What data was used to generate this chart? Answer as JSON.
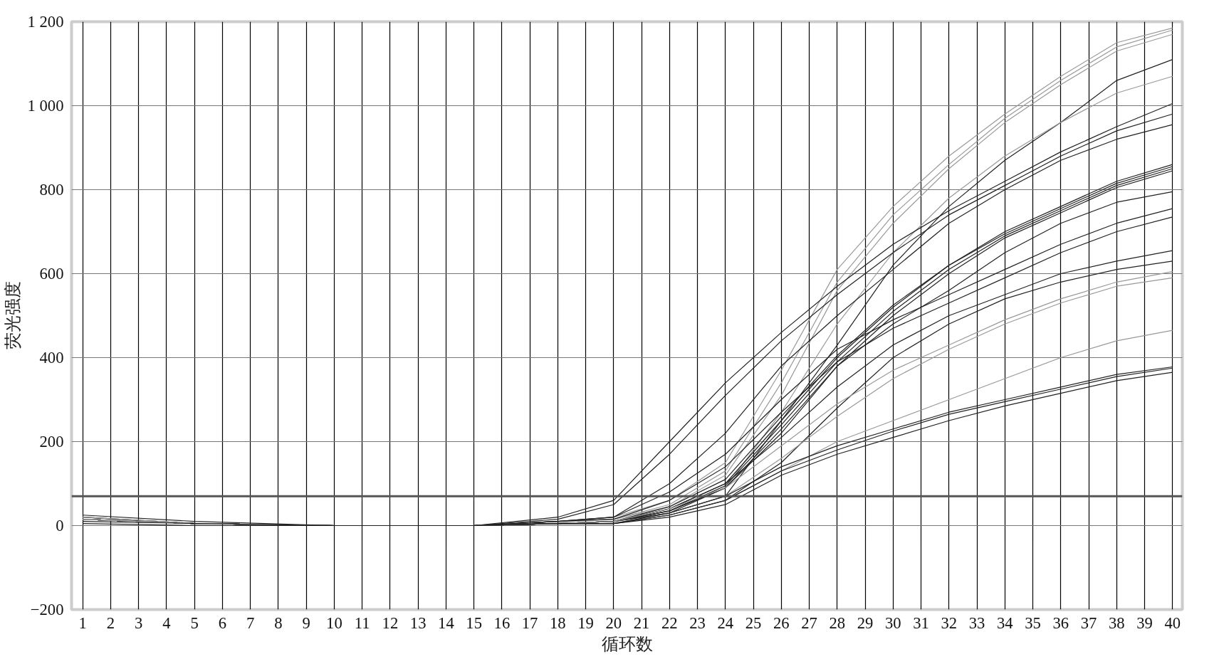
{
  "chart_data": {
    "type": "line",
    "xlabel": "循环数",
    "ylabel": "荧光强度",
    "x": [
      1,
      5,
      10,
      15,
      18,
      20,
      22,
      24,
      26,
      28,
      30,
      32,
      34,
      36,
      38,
      40
    ],
    "xlim": [
      0.6,
      40.35
    ],
    "xticks": [
      1,
      2,
      3,
      4,
      5,
      6,
      7,
      8,
      9,
      10,
      11,
      12,
      13,
      14,
      15,
      16,
      17,
      18,
      19,
      20,
      21,
      22,
      23,
      24,
      25,
      26,
      27,
      28,
      29,
      30,
      31,
      32,
      33,
      34,
      35,
      36,
      37,
      38,
      39,
      40
    ],
    "ylim": [
      -200,
      1200
    ],
    "yticks": [
      {
        "value": -200,
        "label": "−200"
      },
      0,
      200,
      400,
      600,
      800,
      {
        "value": 1000,
        "label": "1 000"
      },
      {
        "value": 1200,
        "label": "1 200"
      }
    ],
    "grid": true,
    "marker": "none",
    "line_style": "solid",
    "ref_lines": [
      {
        "axis": "y",
        "value": 70,
        "color": "#555555"
      }
    ],
    "series": [
      {
        "color": "#999999",
        "values": [
          20,
          5,
          0,
          0,
          10,
          20,
          60,
          150,
          370,
          610,
          760,
          880,
          980,
          1070,
          1150,
          1185
        ]
      },
      {
        "color": "#999999",
        "values": [
          20,
          5,
          0,
          0,
          10,
          15,
          50,
          130,
          340,
          580,
          740,
          860,
          970,
          1060,
          1140,
          1180
        ]
      },
      {
        "color": "#999999",
        "values": [
          20,
          5,
          0,
          0,
          10,
          15,
          45,
          120,
          310,
          560,
          720,
          850,
          960,
          1050,
          1130,
          1170
        ]
      },
      {
        "color": "#222222",
        "values": [
          20,
          5,
          0,
          0,
          5,
          10,
          30,
          70,
          250,
          430,
          620,
          760,
          870,
          960,
          1060,
          1110
        ]
      },
      {
        "color": "#999999",
        "values": [
          20,
          5,
          0,
          0,
          5,
          10,
          35,
          90,
          270,
          480,
          650,
          780,
          880,
          960,
          1030,
          1070
        ]
      },
      {
        "color": "#222222",
        "values": [
          15,
          5,
          0,
          0,
          20,
          60,
          200,
          340,
          460,
          570,
          670,
          750,
          820,
          890,
          950,
          1005
        ]
      },
      {
        "color": "#222222",
        "values": [
          15,
          5,
          0,
          0,
          15,
          50,
          170,
          310,
          440,
          550,
          650,
          740,
          810,
          880,
          940,
          980
        ]
      },
      {
        "color": "#222222",
        "values": [
          15,
          5,
          0,
          0,
          10,
          20,
          100,
          220,
          380,
          500,
          610,
          720,
          800,
          870,
          920,
          955
        ]
      },
      {
        "color": "#222222",
        "values": [
          15,
          5,
          0,
          0,
          5,
          10,
          40,
          100,
          250,
          400,
          520,
          620,
          700,
          760,
          820,
          860
        ]
      },
      {
        "color": "#222222",
        "values": [
          15,
          5,
          0,
          0,
          5,
          10,
          45,
          110,
          260,
          405,
          525,
          620,
          695,
          755,
          815,
          855
        ]
      },
      {
        "color": "#222222",
        "values": [
          15,
          5,
          0,
          0,
          5,
          10,
          35,
          95,
          240,
          390,
          510,
          610,
          690,
          750,
          810,
          850
        ]
      },
      {
        "color": "#222222",
        "values": [
          15,
          5,
          0,
          0,
          5,
          10,
          30,
          90,
          230,
          380,
          500,
          600,
          685,
          745,
          805,
          845
        ]
      },
      {
        "color": "#222222",
        "values": [
          15,
          5,
          0,
          0,
          5,
          10,
          35,
          90,
          220,
          380,
          480,
          560,
          650,
          720,
          770,
          795
        ]
      },
      {
        "color": "#222222",
        "values": [
          15,
          5,
          0,
          0,
          10,
          20,
          80,
          170,
          300,
          420,
          490,
          550,
          610,
          670,
          720,
          755
        ]
      },
      {
        "color": "#222222",
        "values": [
          15,
          5,
          0,
          0,
          10,
          15,
          60,
          140,
          270,
          390,
          470,
          530,
          590,
          650,
          700,
          735
        ]
      },
      {
        "color": "#222222",
        "values": [
          15,
          5,
          0,
          0,
          5,
          10,
          40,
          100,
          210,
          330,
          430,
          500,
          550,
          600,
          630,
          655
        ]
      },
      {
        "color": "#222222",
        "values": [
          15,
          5,
          0,
          0,
          5,
          5,
          25,
          60,
          150,
          280,
          400,
          480,
          540,
          580,
          610,
          630
        ]
      },
      {
        "color": "#999999",
        "values": [
          15,
          5,
          0,
          0,
          5,
          10,
          40,
          90,
          190,
          290,
          370,
          430,
          490,
          540,
          580,
          605
        ]
      },
      {
        "color": "#999999",
        "values": [
          15,
          5,
          0,
          0,
          5,
          5,
          30,
          70,
          160,
          260,
          350,
          420,
          480,
          530,
          570,
          590
        ]
      },
      {
        "color": "#999999",
        "values": [
          15,
          5,
          0,
          0,
          5,
          5,
          25,
          60,
          130,
          200,
          250,
          300,
          350,
          400,
          440,
          465
        ]
      },
      {
        "color": "#222222",
        "values": [
          25,
          10,
          0,
          0,
          5,
          5,
          30,
          70,
          140,
          190,
          230,
          270,
          300,
          330,
          360,
          378
        ]
      },
      {
        "color": "#222222",
        "values": [
          10,
          5,
          0,
          0,
          5,
          5,
          25,
          60,
          130,
          180,
          225,
          265,
          295,
          325,
          355,
          375
        ]
      },
      {
        "color": "#222222",
        "values": [
          5,
          0,
          0,
          0,
          5,
          5,
          20,
          50,
          120,
          170,
          210,
          250,
          285,
          315,
          345,
          365
        ]
      }
    ]
  }
}
